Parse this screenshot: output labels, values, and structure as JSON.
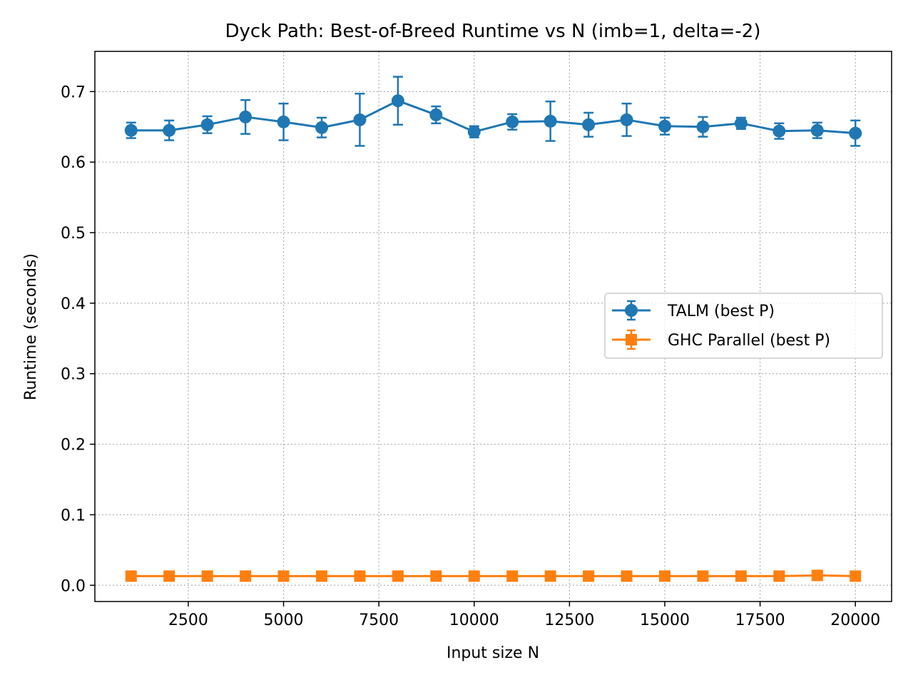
{
  "chart_data": {
    "type": "line",
    "title": "Dyck Path: Best-of-Breed Runtime vs N  (imb=1, delta=-2)",
    "xlabel": "Input size N",
    "ylabel": "Runtime (seconds)",
    "xlim": [
      50,
      20950
    ],
    "ylim": [
      -0.023,
      0.757
    ],
    "xticks": [
      2500,
      5000,
      7500,
      10000,
      12500,
      15000,
      17500,
      20000
    ],
    "yticks": [
      0.0,
      0.1,
      0.2,
      0.3,
      0.4,
      0.5,
      0.6,
      0.7
    ],
    "ytick_labels": [
      "0.0",
      "0.1",
      "0.2",
      "0.3",
      "0.4",
      "0.5",
      "0.6",
      "0.7"
    ],
    "grid": true,
    "legend_position": "center-right",
    "x": [
      1000,
      2000,
      3000,
      4000,
      5000,
      6000,
      7000,
      8000,
      9000,
      10000,
      11000,
      12000,
      13000,
      14000,
      15000,
      16000,
      17000,
      18000,
      19000,
      20000
    ],
    "series": [
      {
        "name": "TALM (best P)",
        "color": "#1f77b4",
        "marker": "circle",
        "values": [
          0.645,
          0.645,
          0.653,
          0.664,
          0.657,
          0.649,
          0.66,
          0.687,
          0.667,
          0.643,
          0.657,
          0.658,
          0.653,
          0.66,
          0.651,
          0.65,
          0.655,
          0.644,
          0.645,
          0.641
        ],
        "errors": [
          0.011,
          0.014,
          0.012,
          0.024,
          0.026,
          0.014,
          0.037,
          0.034,
          0.012,
          0.008,
          0.011,
          0.028,
          0.017,
          0.023,
          0.012,
          0.014,
          0.008,
          0.011,
          0.011,
          0.018
        ]
      },
      {
        "name": "GHC Parallel (best P)",
        "color": "#ff7f0e",
        "marker": "square",
        "values": [
          0.013,
          0.013,
          0.013,
          0.013,
          0.013,
          0.013,
          0.013,
          0.013,
          0.013,
          0.013,
          0.013,
          0.013,
          0.013,
          0.013,
          0.013,
          0.013,
          0.013,
          0.013,
          0.014,
          0.013
        ],
        "errors": [
          0.001,
          0.001,
          0.001,
          0.001,
          0.001,
          0.001,
          0.001,
          0.001,
          0.001,
          0.001,
          0.001,
          0.001,
          0.001,
          0.001,
          0.001,
          0.001,
          0.001,
          0.001,
          0.001,
          0.001
        ]
      }
    ]
  }
}
